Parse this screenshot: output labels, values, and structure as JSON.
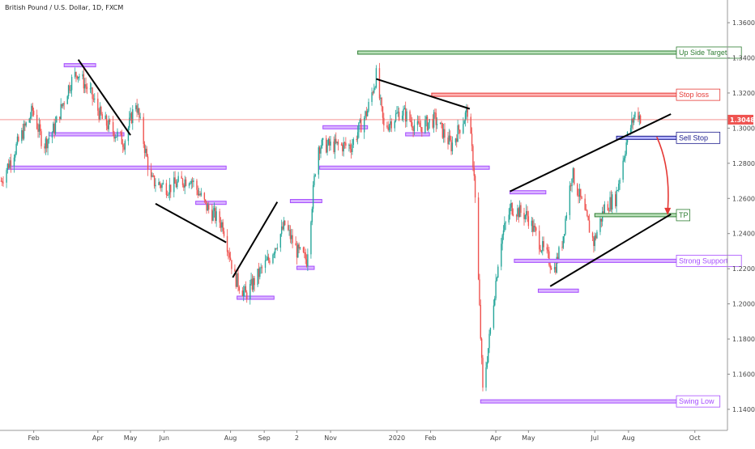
{
  "header": {
    "title": "British Pound / U.S. Dollar, 1D, FXCM"
  },
  "colors": {
    "up": "#26a69a",
    "down": "#ef5350",
    "support": "#a64dff",
    "target": "#2e7d32",
    "stop": "#e53935",
    "sell": "#1a1a8c",
    "trend": "#000000",
    "axis_text": "#444444",
    "price_badge": "#ef5350",
    "arrow": "#e53935"
  },
  "chart_data": {
    "type": "candlestick",
    "title": "British Pound / U.S. Dollar, 1D, FXCM",
    "symbol": "GBPUSD",
    "timeframe": "1D",
    "source": "FXCM",
    "current_price": "1.30482",
    "ylim": [
      1.128,
      1.372
    ],
    "y_ticks": [
      "1.36000",
      "1.34000",
      "1.32000",
      "1.30000",
      "1.28000",
      "1.26000",
      "1.24000",
      "1.22000",
      "1.20000",
      "1.18000",
      "1.16000",
      "1.14000"
    ],
    "x_ticks": [
      "Feb",
      "Apr",
      "May",
      "Jun",
      "Aug",
      "Sep",
      "2",
      "Nov",
      "2020",
      "Feb",
      "Apr",
      "May",
      "Jul",
      "Aug",
      "Oct"
    ],
    "price_path": [
      [
        "2019-01-02",
        1.27
      ],
      [
        "2019-01-20",
        1.295
      ],
      [
        "2019-01-31",
        1.31
      ],
      [
        "2019-02-10",
        1.29
      ],
      [
        "2019-02-20",
        1.3
      ],
      [
        "2019-03-06",
        1.325
      ],
      [
        "2019-03-13",
        1.332
      ],
      [
        "2019-03-25",
        1.32
      ],
      [
        "2019-04-05",
        1.305
      ],
      [
        "2019-04-25",
        1.292
      ],
      [
        "2019-05-06",
        1.315
      ],
      [
        "2019-05-20",
        1.27
      ],
      [
        "2019-06-05",
        1.266
      ],
      [
        "2019-06-25",
        1.272
      ],
      [
        "2019-07-10",
        1.255
      ],
      [
        "2019-07-25",
        1.245
      ],
      [
        "2019-08-05",
        1.215
      ],
      [
        "2019-08-15",
        1.205
      ],
      [
        "2019-08-30",
        1.22
      ],
      [
        "2019-09-05",
        1.225
      ],
      [
        "2019-09-20",
        1.245
      ],
      [
        "2019-10-01",
        1.23
      ],
      [
        "2019-10-10",
        1.225
      ],
      [
        "2019-10-20",
        1.29
      ],
      [
        "2019-10-30",
        1.29
      ],
      [
        "2019-11-20",
        1.29
      ],
      [
        "2019-12-05",
        1.31
      ],
      [
        "2019-12-13",
        1.33
      ],
      [
        "2019-12-20",
        1.3
      ],
      [
        "2020-01-05",
        1.31
      ],
      [
        "2020-01-20",
        1.3
      ],
      [
        "2020-02-05",
        1.305
      ],
      [
        "2020-02-20",
        1.29
      ],
      [
        "2020-03-06",
        1.31
      ],
      [
        "2020-03-12",
        1.275
      ],
      [
        "2020-03-20",
        1.15
      ],
      [
        "2020-03-26",
        1.18
      ],
      [
        "2020-04-05",
        1.235
      ],
      [
        "2020-04-15",
        1.255
      ],
      [
        "2020-04-30",
        1.25
      ],
      [
        "2020-05-15",
        1.23
      ],
      [
        "2020-05-25",
        1.22
      ],
      [
        "2020-06-01",
        1.235
      ],
      [
        "2020-06-10",
        1.275
      ],
      [
        "2020-06-20",
        1.255
      ],
      [
        "2020-06-30",
        1.235
      ],
      [
        "2020-07-10",
        1.255
      ],
      [
        "2020-07-20",
        1.26
      ],
      [
        "2020-07-31",
        1.295
      ],
      [
        "2020-08-08",
        1.31
      ],
      [
        "2020-08-13",
        1.305
      ]
    ],
    "levels": [
      {
        "name": "Up Side Target",
        "price": 1.343,
        "from": "2019-11-26",
        "to": "2020-09-25",
        "kind": "target"
      },
      {
        "name": "Stop loss",
        "price": 1.319,
        "from": "2020-02-02",
        "to": "2020-09-25",
        "kind": "stop"
      },
      {
        "name": "Sell Stop",
        "price": 1.2945,
        "from": "2020-07-21",
        "to": "2020-09-25",
        "kind": "sell"
      },
      {
        "name": "TP",
        "price": 1.2505,
        "from": "2020-07-01",
        "to": "2020-09-25",
        "kind": "target"
      },
      {
        "name": "Strong Support",
        "price": 1.2245,
        "from": "2020-04-18",
        "to": "2020-09-25",
        "kind": "support"
      },
      {
        "name": "Swing Low",
        "price": 1.1445,
        "from": "2020-03-18",
        "to": "2020-09-25",
        "kind": "support"
      }
    ],
    "zones": [
      {
        "price": 1.3358,
        "from": "2019-03-01",
        "to": "2019-03-30"
      },
      {
        "price": 1.2965,
        "from": "2019-02-15",
        "to": "2019-04-25"
      },
      {
        "price": 1.2775,
        "from": "2019-01-08",
        "to": "2019-07-28"
      },
      {
        "price": 1.2575,
        "from": "2019-06-30",
        "to": "2019-07-28"
      },
      {
        "price": 1.2035,
        "from": "2019-08-07",
        "to": "2019-09-10"
      },
      {
        "price": 1.2585,
        "from": "2019-09-25",
        "to": "2019-10-24"
      },
      {
        "price": 1.2205,
        "from": "2019-10-01",
        "to": "2019-10-17"
      },
      {
        "price": 1.3005,
        "from": "2019-10-25",
        "to": "2019-12-05"
      },
      {
        "price": 1.2775,
        "from": "2019-10-22",
        "to": "2020-03-26"
      },
      {
        "price": 1.2965,
        "from": "2020-01-09",
        "to": "2020-01-31"
      },
      {
        "price": 1.2635,
        "from": "2020-04-14",
        "to": "2020-05-17"
      },
      {
        "price": 1.2075,
        "from": "2020-05-10",
        "to": "2020-06-16"
      }
    ],
    "trendlines": [
      {
        "from": [
          "2019-03-14",
          1.339
        ],
        "to": [
          "2019-05-01",
          1.296
        ]
      },
      {
        "from": [
          "2019-05-24",
          1.257
        ],
        "to": [
          "2019-07-28",
          1.235
        ]
      },
      {
        "from": [
          "2019-08-03",
          1.215
        ],
        "to": [
          "2019-09-13",
          1.258
        ]
      },
      {
        "from": [
          "2019-12-13",
          1.328
        ],
        "to": [
          "2020-03-08",
          1.311
        ]
      },
      {
        "from": [
          "2020-04-14",
          1.264
        ],
        "to": [
          "2020-09-09",
          1.308
        ]
      },
      {
        "from": [
          "2020-05-21",
          1.21
        ],
        "to": [
          "2020-09-09",
          1.251
        ]
      }
    ],
    "arrow": {
      "from": [
        "2020-08-27",
        1.295
      ],
      "to": [
        "2020-09-06",
        1.2505
      ]
    }
  }
}
